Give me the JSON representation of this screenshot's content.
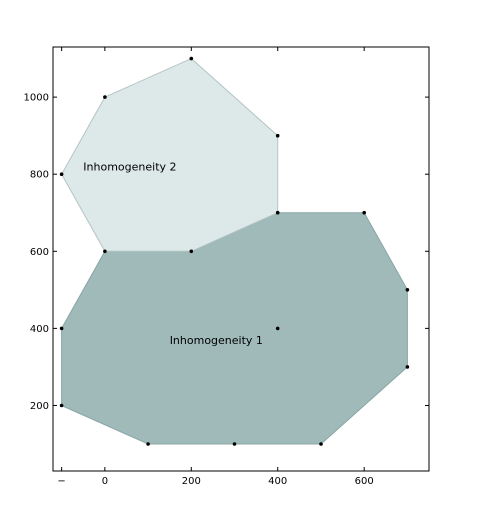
{
  "chart_data": {
    "type": "polygon",
    "xlim": [
      -120,
      750
    ],
    "ylim": [
      30,
      1130
    ],
    "x_ticks": [
      {
        "value": -100,
        "label": "−"
      },
      {
        "value": 0,
        "label": "0"
      },
      {
        "value": 200,
        "label": "200"
      },
      {
        "value": 400,
        "label": "400"
      },
      {
        "value": 600,
        "label": "600"
      }
    ],
    "y_ticks": [
      {
        "value": 200,
        "label": "200"
      },
      {
        "value": 400,
        "label": "400"
      },
      {
        "value": 600,
        "label": "600"
      },
      {
        "value": 800,
        "label": "800"
      },
      {
        "value": 1000,
        "label": "1000"
      }
    ],
    "grid": false,
    "polygons": [
      {
        "name": "Inhomogeneity 1",
        "fill": "#a0baba",
        "edge": "#8aa5a5",
        "label": {
          "x": 150,
          "y": 360
        },
        "vertices": [
          [
            0,
            600
          ],
          [
            200,
            600
          ],
          [
            400,
            700
          ],
          [
            600,
            700
          ],
          [
            700,
            500
          ],
          [
            700,
            300
          ],
          [
            500,
            100
          ],
          [
            300,
            100
          ],
          [
            100,
            100
          ],
          [
            -100,
            200
          ],
          [
            -100,
            400
          ]
        ]
      },
      {
        "name": "Inhomogeneity 2",
        "fill": "#dde8e8",
        "edge": "#b4c4c4",
        "label": {
          "x": -50,
          "y": 810
        },
        "vertices": [
          [
            0,
            600
          ],
          [
            -100,
            800
          ],
          [
            0,
            1000
          ],
          [
            200,
            1100
          ],
          [
            400,
            900
          ],
          [
            400,
            700
          ],
          [
            200,
            600
          ]
        ]
      }
    ],
    "points": [
      [
        200,
        1100
      ],
      [
        0,
        1000
      ],
      [
        400,
        900
      ],
      [
        -100,
        800
      ],
      [
        400,
        700
      ],
      [
        600,
        700
      ],
      [
        0,
        600
      ],
      [
        200,
        600
      ],
      [
        700,
        500
      ],
      [
        -100,
        400
      ],
      [
        400,
        400
      ],
      [
        700,
        300
      ],
      [
        -100,
        200
      ],
      [
        100,
        100
      ],
      [
        300,
        100
      ],
      [
        500,
        100
      ]
    ],
    "point_color": "#000000"
  }
}
